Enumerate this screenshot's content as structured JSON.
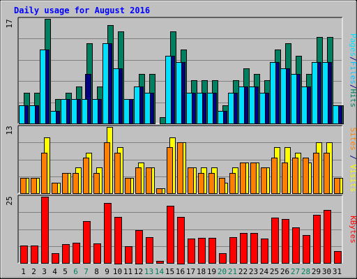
{
  "chart_data": [
    {
      "type": "bar",
      "panel": "top",
      "title": "Daily usage for August 2016",
      "ymax_label": "17",
      "ylim": [
        0,
        17
      ],
      "right_label_parts": [
        "Pages",
        "/",
        "Files",
        "/",
        "Hits"
      ],
      "right_label_colors": [
        "#00e0ff",
        "#000080",
        "#00c0ff",
        "#000080",
        "#008060"
      ],
      "categories": [
        "1",
        "2",
        "3",
        "4",
        "5",
        "6",
        "7",
        "8",
        "9",
        "10",
        "11",
        "12",
        "13",
        "14",
        "15",
        "16",
        "17",
        "18",
        "19",
        "20",
        "21",
        "22",
        "23",
        "24",
        "25",
        "26",
        "27",
        "28",
        "29",
        "30",
        "31"
      ],
      "series": [
        {
          "name": "Hits",
          "color": "#008060",
          "values": [
            5,
            5,
            17,
            4,
            5,
            6,
            13,
            6,
            16,
            15,
            4,
            8,
            8,
            1,
            15,
            12,
            7,
            7,
            7,
            3,
            7,
            9,
            8,
            7,
            12,
            13,
            11,
            8,
            14,
            14,
            3
          ]
        },
        {
          "name": "Files",
          "color": "#000080",
          "values": [
            3,
            3,
            12,
            2,
            4,
            4,
            8,
            4,
            13,
            9,
            4,
            6,
            5,
            0,
            11,
            10,
            5,
            5,
            5,
            2,
            5,
            6,
            6,
            5,
            10,
            9,
            8,
            6,
            10,
            10,
            3
          ]
        },
        {
          "name": "Pages",
          "color": "#00e0ff",
          "values": [
            3,
            3,
            12,
            2,
            4,
            4,
            4,
            4,
            13,
            9,
            4,
            6,
            5,
            0,
            11,
            10,
            5,
            5,
            5,
            2,
            5,
            6,
            6,
            5,
            10,
            9,
            8,
            6,
            10,
            10,
            3
          ]
        }
      ]
    },
    {
      "type": "bar",
      "panel": "middle",
      "ymax_label": "13",
      "ylim": [
        0,
        13
      ],
      "right_label_parts": [
        "Sites",
        " / ",
        "Visits"
      ],
      "right_label_colors": [
        "#ff8000",
        "#000080",
        "#ffff00"
      ],
      "categories": [
        "1",
        "2",
        "3",
        "4",
        "5",
        "6",
        "7",
        "8",
        "9",
        "10",
        "11",
        "12",
        "13",
        "14",
        "15",
        "16",
        "17",
        "18",
        "19",
        "20",
        "21",
        "22",
        "23",
        "24",
        "25",
        "26",
        "27",
        "28",
        "29",
        "30",
        "31"
      ],
      "series": [
        {
          "name": "Visits",
          "color": "#ffff00",
          "values": [
            3,
            3,
            11,
            2,
            4,
            5,
            8,
            5,
            13,
            9,
            3,
            6,
            5,
            1,
            11,
            10,
            5,
            5,
            5,
            2,
            5,
            6,
            6,
            5,
            9,
            9,
            8,
            6,
            10,
            10,
            3
          ]
        },
        {
          "name": "Sites",
          "color": "#ff8000",
          "values": [
            3,
            3,
            8,
            2,
            4,
            4,
            7,
            4,
            10,
            8,
            3,
            5,
            5,
            1,
            9,
            10,
            5,
            4,
            4,
            3,
            4,
            6,
            6,
            5,
            7,
            6,
            7,
            7,
            8,
            8,
            3
          ]
        }
      ]
    },
    {
      "type": "bar",
      "panel": "bottom",
      "ymax_label": "25",
      "ylim": [
        0,
        25
      ],
      "right_label_parts": [
        "KBytes"
      ],
      "right_label_colors": [
        "#ff0000"
      ],
      "categories": [
        "1",
        "2",
        "3",
        "4",
        "5",
        "6",
        "7",
        "8",
        "9",
        "10",
        "11",
        "12",
        "13",
        "14",
        "15",
        "16",
        "17",
        "18",
        "19",
        "20",
        "21",
        "22",
        "23",
        "24",
        "25",
        "26",
        "27",
        "28",
        "29",
        "30",
        "31"
      ],
      "series": [
        {
          "name": "KBytes",
          "color": "#ff0000",
          "values": [
            6.5,
            6.5,
            25,
            3.7,
            7.2,
            7.7,
            15.7,
            7.4,
            22.6,
            17.5,
            6.3,
            12.5,
            9.8,
            0.7,
            21.5,
            17.5,
            9.2,
            9.5,
            9.5,
            3.7,
            9.8,
            11.3,
            11.3,
            9.2,
            17,
            16.5,
            13.5,
            10.5,
            18.2,
            20,
            4.6
          ]
        }
      ]
    }
  ],
  "x_axis": {
    "labels": [
      "1",
      "2",
      "3",
      "4",
      "5",
      "6",
      "7",
      "8",
      "9",
      "10",
      "11",
      "12",
      "13",
      "14",
      "15",
      "16",
      "17",
      "18",
      "19",
      "20",
      "21",
      "22",
      "23",
      "24",
      "25",
      "26",
      "27",
      "28",
      "29",
      "30",
      "31"
    ],
    "weekend_days": [
      "6",
      "7",
      "13",
      "14",
      "20",
      "21",
      "27",
      "28"
    ],
    "weekday_color": "#000000",
    "weekend_color": "#008060"
  },
  "colors": {
    "background": "#c0c0c0",
    "title": "#0000ff"
  }
}
